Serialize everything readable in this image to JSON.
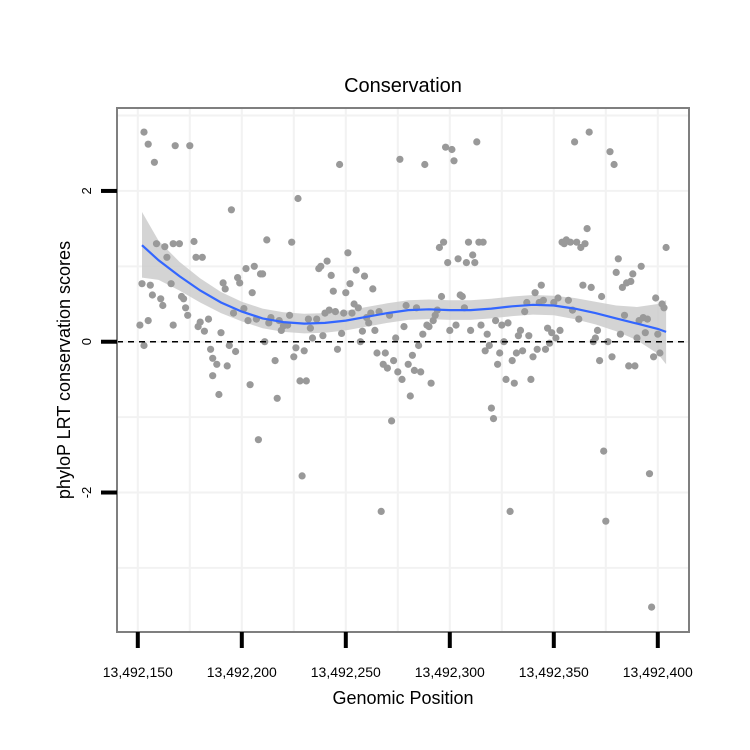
{
  "chart_data": {
    "type": "scatter",
    "title": "Conservation",
    "xlabel": "Genomic Position",
    "ylabel": "phyloP LRT conservation scores",
    "xlim": [
      13492140,
      13492415
    ],
    "ylim": [
      -3.85,
      3.1
    ],
    "x_ticks": [
      13492150,
      13492200,
      13492250,
      13492300,
      13492350,
      13492400
    ],
    "x_tick_labels": [
      "13,492,150",
      "13,492,200",
      "13,492,250",
      "13,492,300",
      "13,492,350",
      "13,492,400"
    ],
    "y_ticks": [
      -2,
      0,
      2
    ],
    "y_tick_labels": [
      "-2",
      "0",
      "2"
    ],
    "grid": true,
    "reference_line": {
      "y": 0,
      "style": "dashed"
    },
    "colors": {
      "points": "#999999",
      "smooth_line": "#3366ff",
      "band": "#cccccc",
      "grid": "#f2f2f2",
      "frame": "#7f7f7f"
    },
    "points": [
      [
        13492151,
        0.22
      ],
      [
        13492152,
        0.77
      ],
      [
        13492153,
        -0.05
      ],
      [
        13492153,
        2.78
      ],
      [
        13492155,
        0.28
      ],
      [
        13492155,
        2.62
      ],
      [
        13492156,
        0.75
      ],
      [
        13492157,
        0.62
      ],
      [
        13492158,
        2.38
      ],
      [
        13492159,
        1.3
      ],
      [
        13492161,
        0.57
      ],
      [
        13492162,
        0.48
      ],
      [
        13492163,
        1.26
      ],
      [
        13492164,
        1.12
      ],
      [
        13492166,
        0.77
      ],
      [
        13492167,
        1.3
      ],
      [
        13492167,
        0.22
      ],
      [
        13492168,
        2.6
      ],
      [
        13492170,
        1.3
      ],
      [
        13492171,
        0.6
      ],
      [
        13492172,
        0.57
      ],
      [
        13492173,
        0.45
      ],
      [
        13492174,
        0.35
      ],
      [
        13492175,
        2.6
      ],
      [
        13492177,
        1.33
      ],
      [
        13492178,
        1.12
      ],
      [
        13492179,
        0.2
      ],
      [
        13492180,
        0.26
      ],
      [
        13492181,
        1.12
      ],
      [
        13492182,
        0.14
      ],
      [
        13492184,
        0.3
      ],
      [
        13492185,
        -0.1
      ],
      [
        13492186,
        -0.45
      ],
      [
        13492186,
        -0.22
      ],
      [
        13492188,
        -0.3
      ],
      [
        13492189,
        -0.7
      ],
      [
        13492190,
        0.12
      ],
      [
        13492191,
        0.78
      ],
      [
        13492192,
        0.7
      ],
      [
        13492193,
        -0.32
      ],
      [
        13492194,
        -0.05
      ],
      [
        13492195,
        1.75
      ],
      [
        13492196,
        0.38
      ],
      [
        13492197,
        -0.13
      ],
      [
        13492198,
        0.85
      ],
      [
        13492199,
        0.78
      ],
      [
        13492201,
        0.44
      ],
      [
        13492202,
        0.97
      ],
      [
        13492203,
        0.28
      ],
      [
        13492204,
        -0.57
      ],
      [
        13492205,
        0.65
      ],
      [
        13492206,
        1.0
      ],
      [
        13492207,
        0.3
      ],
      [
        13492208,
        -1.3
      ],
      [
        13492209,
        0.9
      ],
      [
        13492210,
        0.9
      ],
      [
        13492211,
        0.0
      ],
      [
        13492212,
        1.35
      ],
      [
        13492213,
        0.25
      ],
      [
        13492214,
        0.32
      ],
      [
        13492216,
        -0.25
      ],
      [
        13492217,
        -0.75
      ],
      [
        13492218,
        0.28
      ],
      [
        13492219,
        0.15
      ],
      [
        13492220,
        0.21
      ],
      [
        13492222,
        0.22
      ],
      [
        13492223,
        0.35
      ],
      [
        13492224,
        1.32
      ],
      [
        13492225,
        -0.2
      ],
      [
        13492226,
        -0.08
      ],
      [
        13492227,
        1.9
      ],
      [
        13492228,
        -0.52
      ],
      [
        13492229,
        -1.78
      ],
      [
        13492230,
        -0.12
      ],
      [
        13492231,
        -0.52
      ],
      [
        13492232,
        0.3
      ],
      [
        13492233,
        0.18
      ],
      [
        13492234,
        0.05
      ],
      [
        13492236,
        0.3
      ],
      [
        13492237,
        0.97
      ],
      [
        13492238,
        1.0
      ],
      [
        13492239,
        0.08
      ],
      [
        13492240,
        0.38
      ],
      [
        13492241,
        1.07
      ],
      [
        13492242,
        0.42
      ],
      [
        13492243,
        0.88
      ],
      [
        13492244,
        0.67
      ],
      [
        13492245,
        0.4
      ],
      [
        13492246,
        -0.1
      ],
      [
        13492247,
        2.35
      ],
      [
        13492248,
        0.11
      ],
      [
        13492249,
        0.38
      ],
      [
        13492250,
        0.65
      ],
      [
        13492251,
        1.18
      ],
      [
        13492252,
        0.77
      ],
      [
        13492253,
        0.38
      ],
      [
        13492254,
        0.5
      ],
      [
        13492255,
        0.95
      ],
      [
        13492256,
        0.45
      ],
      [
        13492257,
        0.0
      ],
      [
        13492258,
        0.14
      ],
      [
        13492259,
        0.87
      ],
      [
        13492260,
        0.32
      ],
      [
        13492261,
        0.25
      ],
      [
        13492262,
        0.38
      ],
      [
        13492263,
        0.7
      ],
      [
        13492264,
        0.15
      ],
      [
        13492265,
        -0.15
      ],
      [
        13492266,
        0.4
      ],
      [
        13492267,
        -2.25
      ],
      [
        13492268,
        -0.3
      ],
      [
        13492269,
        -0.15
      ],
      [
        13492270,
        -0.35
      ],
      [
        13492271,
        0.35
      ],
      [
        13492272,
        -1.05
      ],
      [
        13492273,
        -0.25
      ],
      [
        13492274,
        0.05
      ],
      [
        13492275,
        -0.4
      ],
      [
        13492276,
        2.42
      ],
      [
        13492277,
        -0.5
      ],
      [
        13492278,
        0.2
      ],
      [
        13492279,
        0.48
      ],
      [
        13492280,
        -0.3
      ],
      [
        13492281,
        -0.72
      ],
      [
        13492282,
        -0.18
      ],
      [
        13492283,
        -0.38
      ],
      [
        13492284,
        0.45
      ],
      [
        13492285,
        -0.05
      ],
      [
        13492286,
        -0.4
      ],
      [
        13492287,
        0.1
      ],
      [
        13492288,
        2.35
      ],
      [
        13492289,
        0.22
      ],
      [
        13492290,
        0.2
      ],
      [
        13492291,
        -0.55
      ],
      [
        13492292,
        0.28
      ],
      [
        13492293,
        0.35
      ],
      [
        13492294,
        0.42
      ],
      [
        13492295,
        1.25
      ],
      [
        13492296,
        0.6
      ],
      [
        13492297,
        1.32
      ],
      [
        13492298,
        2.58
      ],
      [
        13492299,
        1.05
      ],
      [
        13492300,
        0.15
      ],
      [
        13492301,
        2.55
      ],
      [
        13492302,
        2.4
      ],
      [
        13492303,
        0.22
      ],
      [
        13492304,
        1.1
      ],
      [
        13492305,
        0.62
      ],
      [
        13492306,
        0.6
      ],
      [
        13492307,
        0.45
      ],
      [
        13492308,
        1.05
      ],
      [
        13492309,
        1.32
      ],
      [
        13492310,
        0.15
      ],
      [
        13492311,
        1.15
      ],
      [
        13492312,
        1.05
      ],
      [
        13492313,
        2.65
      ],
      [
        13492314,
        1.32
      ],
      [
        13492315,
        0.22
      ],
      [
        13492316,
        1.32
      ],
      [
        13492317,
        -0.12
      ],
      [
        13492318,
        0.1
      ],
      [
        13492319,
        -0.05
      ],
      [
        13492320,
        -0.88
      ],
      [
        13492321,
        -1.02
      ],
      [
        13492322,
        0.28
      ],
      [
        13492323,
        -0.3
      ],
      [
        13492324,
        -0.15
      ],
      [
        13492325,
        0.22
      ],
      [
        13492326,
        0.0
      ],
      [
        13492327,
        -0.5
      ],
      [
        13492328,
        0.25
      ],
      [
        13492329,
        -2.25
      ],
      [
        13492330,
        -0.25
      ],
      [
        13492331,
        -0.55
      ],
      [
        13492332,
        -0.15
      ],
      [
        13492333,
        0.08
      ],
      [
        13492334,
        0.15
      ],
      [
        13492335,
        -0.12
      ],
      [
        13492336,
        0.4
      ],
      [
        13492337,
        0.52
      ],
      [
        13492338,
        0.08
      ],
      [
        13492339,
        -0.5
      ],
      [
        13492340,
        -0.2
      ],
      [
        13492341,
        0.65
      ],
      [
        13492342,
        -0.1
      ],
      [
        13492343,
        0.52
      ],
      [
        13492344,
        0.75
      ],
      [
        13492345,
        0.55
      ],
      [
        13492346,
        -0.1
      ],
      [
        13492347,
        0.18
      ],
      [
        13492348,
        -0.02
      ],
      [
        13492349,
        0.12
      ],
      [
        13492350,
        0.52
      ],
      [
        13492351,
        0.05
      ],
      [
        13492352,
        0.58
      ],
      [
        13492353,
        0.15
      ],
      [
        13492354,
        1.32
      ],
      [
        13492355,
        1.3
      ],
      [
        13492356,
        1.35
      ],
      [
        13492357,
        0.55
      ],
      [
        13492358,
        1.32
      ],
      [
        13492359,
        0.42
      ],
      [
        13492360,
        2.65
      ],
      [
        13492361,
        1.32
      ],
      [
        13492362,
        0.3
      ],
      [
        13492363,
        1.25
      ],
      [
        13492364,
        0.75
      ],
      [
        13492365,
        1.3
      ],
      [
        13492366,
        1.5
      ],
      [
        13492367,
        2.78
      ],
      [
        13492368,
        0.72
      ],
      [
        13492369,
        0.0
      ],
      [
        13492370,
        0.05
      ],
      [
        13492371,
        0.15
      ],
      [
        13492372,
        -0.25
      ],
      [
        13492373,
        0.6
      ],
      [
        13492374,
        -1.45
      ],
      [
        13492375,
        -2.38
      ],
      [
        13492376,
        0.0
      ],
      [
        13492377,
        2.52
      ],
      [
        13492378,
        -0.2
      ],
      [
        13492379,
        2.35
      ],
      [
        13492380,
        0.92
      ],
      [
        13492381,
        1.1
      ],
      [
        13492382,
        0.1
      ],
      [
        13492383,
        0.72
      ],
      [
        13492384,
        0.35
      ],
      [
        13492385,
        0.78
      ],
      [
        13492386,
        -0.32
      ],
      [
        13492387,
        0.8
      ],
      [
        13492388,
        0.9
      ],
      [
        13492389,
        -0.32
      ],
      [
        13492390,
        0.05
      ],
      [
        13492391,
        0.28
      ],
      [
        13492392,
        1.0
      ],
      [
        13492393,
        0.32
      ],
      [
        13492394,
        0.12
      ],
      [
        13492395,
        0.3
      ],
      [
        13492396,
        -1.75
      ],
      [
        13492397,
        -3.52
      ],
      [
        13492398,
        -0.2
      ],
      [
        13492399,
        0.58
      ],
      [
        13492400,
        0.1
      ],
      [
        13492401,
        -0.15
      ],
      [
        13492402,
        0.5
      ],
      [
        13492403,
        0.45
      ],
      [
        13492404,
        1.25
      ]
    ],
    "smooth_curve": [
      {
        "x": 13492152,
        "y": 1.28,
        "lo": 0.85,
        "hi": 1.72
      },
      {
        "x": 13492160,
        "y": 1.08,
        "lo": 0.82,
        "hi": 1.34
      },
      {
        "x": 13492170,
        "y": 0.87,
        "lo": 0.68,
        "hi": 1.06
      },
      {
        "x": 13492180,
        "y": 0.68,
        "lo": 0.52,
        "hi": 0.84
      },
      {
        "x": 13492190,
        "y": 0.52,
        "lo": 0.38,
        "hi": 0.66
      },
      {
        "x": 13492200,
        "y": 0.4,
        "lo": 0.27,
        "hi": 0.53
      },
      {
        "x": 13492210,
        "y": 0.31,
        "lo": 0.18,
        "hi": 0.44
      },
      {
        "x": 13492220,
        "y": 0.26,
        "lo": 0.13,
        "hi": 0.39
      },
      {
        "x": 13492230,
        "y": 0.24,
        "lo": 0.11,
        "hi": 0.37
      },
      {
        "x": 13492240,
        "y": 0.25,
        "lo": 0.12,
        "hi": 0.38
      },
      {
        "x": 13492250,
        "y": 0.28,
        "lo": 0.15,
        "hi": 0.41
      },
      {
        "x": 13492260,
        "y": 0.33,
        "lo": 0.2,
        "hi": 0.46
      },
      {
        "x": 13492270,
        "y": 0.38,
        "lo": 0.25,
        "hi": 0.51
      },
      {
        "x": 13492280,
        "y": 0.42,
        "lo": 0.29,
        "hi": 0.55
      },
      {
        "x": 13492290,
        "y": 0.43,
        "lo": 0.3,
        "hi": 0.56
      },
      {
        "x": 13492300,
        "y": 0.42,
        "lo": 0.29,
        "hi": 0.55
      },
      {
        "x": 13492310,
        "y": 0.42,
        "lo": 0.29,
        "hi": 0.55
      },
      {
        "x": 13492320,
        "y": 0.44,
        "lo": 0.31,
        "hi": 0.57
      },
      {
        "x": 13492330,
        "y": 0.47,
        "lo": 0.34,
        "hi": 0.6
      },
      {
        "x": 13492340,
        "y": 0.49,
        "lo": 0.36,
        "hi": 0.62
      },
      {
        "x": 13492350,
        "y": 0.48,
        "lo": 0.35,
        "hi": 0.61
      },
      {
        "x": 13492360,
        "y": 0.44,
        "lo": 0.3,
        "hi": 0.58
      },
      {
        "x": 13492370,
        "y": 0.38,
        "lo": 0.23,
        "hi": 0.53
      },
      {
        "x": 13492380,
        "y": 0.31,
        "lo": 0.14,
        "hi": 0.48
      },
      {
        "x": 13492390,
        "y": 0.24,
        "lo": 0.02,
        "hi": 0.46
      },
      {
        "x": 13492400,
        "y": 0.17,
        "lo": -0.16,
        "hi": 0.5
      },
      {
        "x": 13492404,
        "y": 0.13,
        "lo": -0.3,
        "hi": 0.55
      }
    ]
  }
}
